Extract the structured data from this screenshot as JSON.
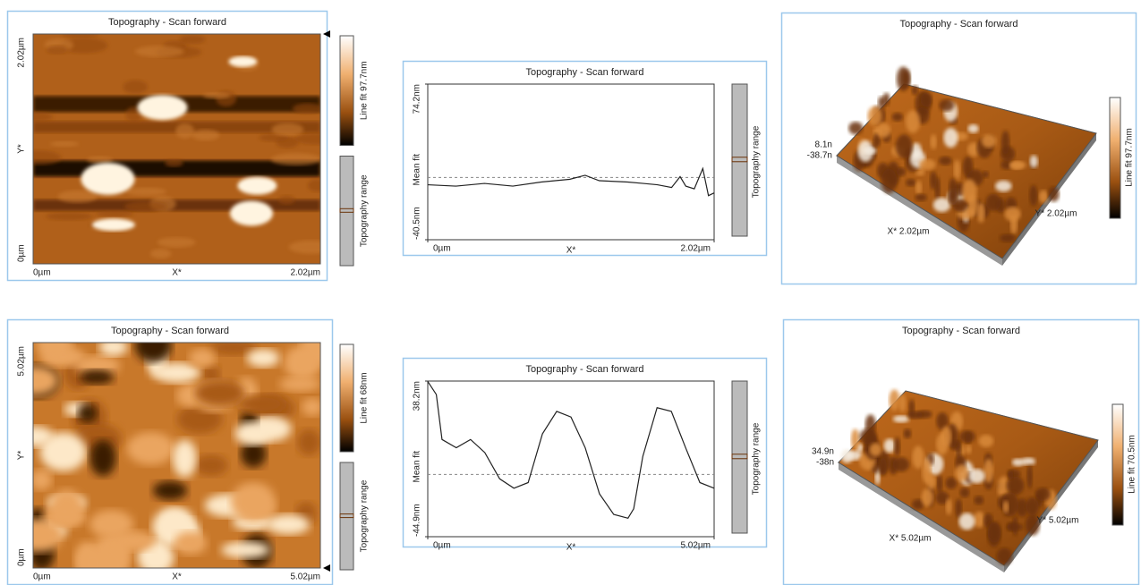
{
  "panels": [
    {
      "kind": "image",
      "title": "Topography - Scan forward",
      "y_max": "2.02µm",
      "y_mid": "Y*",
      "y_min": "0µm",
      "x_min": "0µm",
      "x_mid": "X*",
      "x_max": "2.02µm",
      "colorbar_label": "Line fit 97.7nm",
      "range_label": "Topography range"
    },
    {
      "kind": "profile",
      "title": "Topography - Scan forward",
      "range_label": "Topography range",
      "mean_label": "Mean fit",
      "x_label": "X*",
      "chart": {
        "type": "line",
        "x": [
          0,
          0.2,
          0.4,
          0.6,
          0.8,
          1.0,
          1.11,
          1.21,
          1.41,
          1.52,
          1.62,
          1.72,
          1.78,
          1.82,
          1.88,
          1.94,
          1.98,
          2.02
        ],
        "values": [
          0,
          -1,
          1,
          -1,
          2,
          4,
          7,
          3,
          2,
          1,
          0,
          -2,
          6,
          -1,
          -3,
          12,
          -8,
          -6
        ],
        "color": "#222222",
        "xlim": [
          0,
          2.02
        ],
        "xticks": [
          {
            "value": 0,
            "label": "0µm"
          },
          {
            "value": 2.02,
            "label": "2.02µm"
          }
        ],
        "ylim": [
          -40.5,
          74.2
        ],
        "yticks": [
          {
            "value": -40.5,
            "label": "-40.5nm"
          },
          {
            "value": 74.2,
            "label": "74.2nm"
          }
        ]
      }
    },
    {
      "kind": "3d",
      "title": "Topography - Scan forward",
      "z_max": "8.1n",
      "z_min": "-38.7n",
      "x_label": "X* 2.02µm",
      "y_label": "Y* 2.02µm",
      "colorbar_label": "Line fit 97.7nm"
    },
    {
      "kind": "image",
      "title": "Topography - Scan forward",
      "y_max": "5.02µm",
      "y_mid": "Y*",
      "y_min": "0µm",
      "x_min": "0µm",
      "x_mid": "X*",
      "x_max": "5.02µm",
      "colorbar_label": "Line fit 68nm",
      "range_label": "Topography range"
    },
    {
      "kind": "profile",
      "title": "Topography - Scan forward",
      "range_label": "Topography range",
      "mean_label": "Mean fit",
      "x_label": "X*",
      "chart": {
        "type": "line",
        "x": [
          0,
          0.15,
          0.25,
          0.5,
          0.75,
          1.0,
          1.26,
          1.51,
          1.76,
          2.01,
          2.26,
          2.51,
          2.76,
          3.01,
          3.26,
          3.51,
          3.61,
          3.77,
          4.02,
          4.27,
          4.52,
          4.77,
          5.02
        ],
        "values": [
          38,
          31,
          7,
          2.6,
          7,
          0,
          -14,
          -19,
          -16,
          10,
          22,
          19,
          2.6,
          -22,
          -33,
          -35,
          -30,
          -2,
          24,
          22,
          2.6,
          -16,
          -19
        ],
        "color": "#222222",
        "xlim": [
          0,
          5.02
        ],
        "xticks": [
          {
            "value": 0,
            "label": "0µm"
          },
          {
            "value": 5.02,
            "label": "5.02µm"
          }
        ],
        "ylim": [
          -44.9,
          38.2
        ],
        "yticks": [
          {
            "value": -44.9,
            "label": "-44.9nm"
          },
          {
            "value": 38.2,
            "label": "38.2nm"
          }
        ]
      }
    },
    {
      "kind": "3d",
      "title": "Topography - Scan forward",
      "z_max": "34.9n",
      "z_min": "-38n",
      "x_label": "X* 5.02µm",
      "y_label": "Y* 5.02µm",
      "colorbar_label": "Line fit 70.5nm"
    }
  ]
}
